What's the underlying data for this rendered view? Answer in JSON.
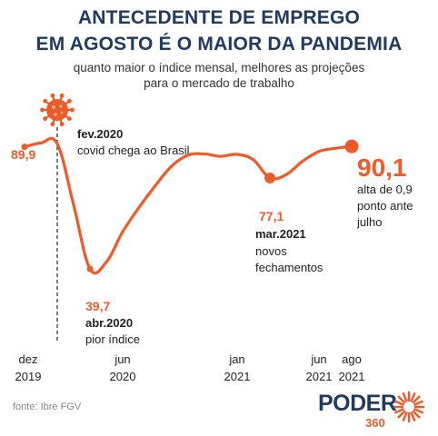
{
  "header": {
    "title_line1": "ANTECEDENTE DE EMPREGO",
    "title_line2": "EM AGOSTO É O MAIOR DA PANDEMIA",
    "subtitle_line1": "quanto maior o índice mensal, melhores as projeções",
    "subtitle_line2": "para o mercado de trabalho"
  },
  "source": "fonte: Ibre FGV",
  "logo": {
    "word": "PODER",
    "number": "360"
  },
  "colors": {
    "line": "#f05a28",
    "title": "#1f3a5f",
    "text": "#222222"
  },
  "icons": {
    "covid": "virus-icon"
  },
  "chart_data": {
    "type": "line",
    "series": [
      {
        "x": [
          "2019-12",
          "2020-01",
          "2020-02",
          "2020-03",
          "2020-04",
          "2020-05",
          "2020-06",
          "2020-07",
          "2020-08",
          "2020-09",
          "2020-10",
          "2020-11",
          "2020-12",
          "2021-01",
          "2021-02",
          "2021-03",
          "2021-04",
          "2021-05",
          "2021-06",
          "2021-07",
          "2021-08"
        ],
        "values": [
          89.9,
          91.5,
          91.2,
          66.0,
          39.7,
          42.5,
          55.0,
          65.0,
          74.0,
          82.0,
          86.5,
          87.0,
          86.0,
          86.8,
          84.5,
          77.1,
          78.5,
          84.0,
          88.0,
          89.3,
          90.1
        ]
      }
    ],
    "ylim": [
      30,
      98
    ],
    "xticks": [
      {
        "x": "2019-12",
        "month": "dez",
        "year": "2019"
      },
      {
        "x": "2020-06",
        "month": "jun",
        "year": "2020"
      },
      {
        "x": "2021-01",
        "month": "jan",
        "year": "2021"
      },
      {
        "x": "2021-06",
        "month": "jun",
        "year": "2021"
      },
      {
        "x": "2021-08",
        "month": "ago",
        "year": "2021"
      }
    ],
    "event_line": {
      "x": "2020-02",
      "date": "fev.2020",
      "text": "covid chega ao Brasil"
    },
    "annotations": [
      {
        "x": "2019-12",
        "value": "89,9"
      },
      {
        "x": "2020-04",
        "value": "39,7",
        "date": "abr.2020",
        "lines": [
          "pior índice"
        ]
      },
      {
        "x": "2021-03",
        "value": "77,1",
        "date": "mar.2021",
        "lines": [
          "novos",
          "fechamentos"
        ]
      },
      {
        "x": "2021-08",
        "value": "90,1",
        "lines": [
          "alta de 0,9",
          "ponto ante",
          "julho"
        ]
      }
    ]
  }
}
